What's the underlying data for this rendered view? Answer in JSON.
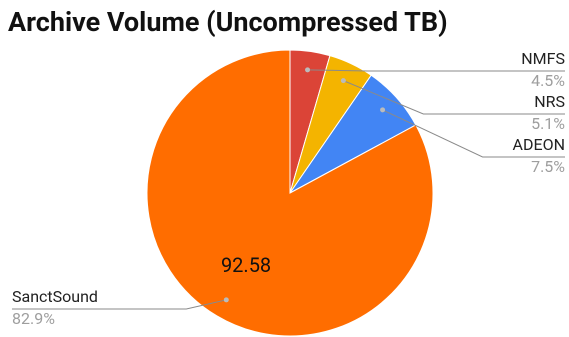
{
  "chart_data": {
    "type": "pie",
    "title": "Archive Volume (Uncompressed TB)",
    "categories": [
      "NMFS",
      "NRS",
      "ADEON",
      "SanctSound"
    ],
    "values": [
      5.03,
      5.7,
      8.38,
      92.58
    ],
    "percent_labels": [
      "4.5%",
      "5.1%",
      "7.5%",
      "82.9%"
    ],
    "colors": [
      "#db4437",
      "#f4b400",
      "#4285f4",
      "#ff6d00"
    ],
    "value_label_shown": [
      false,
      false,
      false,
      true
    ]
  }
}
